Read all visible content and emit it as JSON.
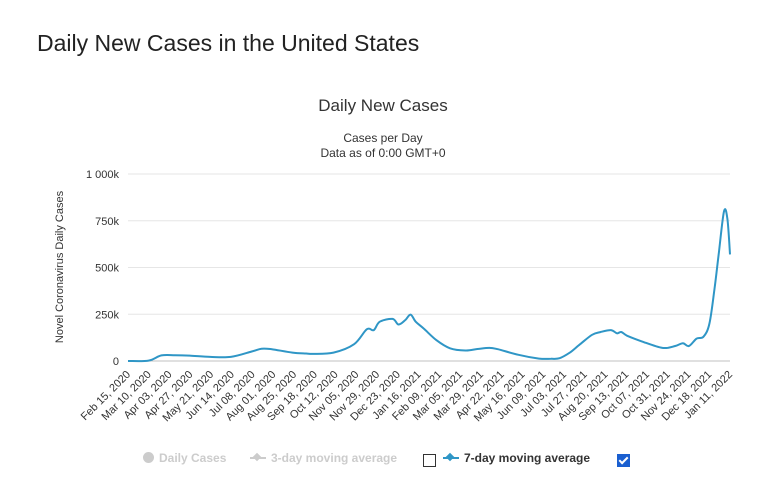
{
  "page": {
    "title": "Daily New Cases in the United States"
  },
  "chart_data": {
    "type": "line",
    "title": "Daily New Cases",
    "subtitle_lines": [
      "Cases per Day",
      "Data as of 0:00 GMT+0"
    ],
    "ylabel": "Novel Coronavirus Daily Cases",
    "xlabel": "",
    "ylim": [
      0,
      1000000
    ],
    "y_ticks": [
      0,
      250000,
      500000,
      750000,
      1000000
    ],
    "y_tick_labels": [
      "0",
      "250k",
      "500k",
      "750k",
      "1 000k"
    ],
    "grid": true,
    "x_tick_labels": [
      "Feb 15, 2020",
      "Mar 10, 2020",
      "Apr 03, 2020",
      "Apr 27, 2020",
      "May 21, 2020",
      "Jun 14, 2020",
      "Jul 08, 2020",
      "Aug 01, 2020",
      "Aug 25, 2020",
      "Sep 18, 2020",
      "Oct 12, 2020",
      "Nov 05, 2020",
      "Nov 29, 2020",
      "Dec 23, 2020",
      "Jan 16, 2021",
      "Feb 09, 2021",
      "Mar 05, 2021",
      "Mar 29, 2021",
      "Apr 22, 2021",
      "May 16, 2021",
      "Jun 09, 2021",
      "Jul 03, 2021",
      "Jul 27, 2021",
      "Aug 20, 2021",
      "Sep 13, 2021",
      "Oct 07, 2021",
      "Oct 31, 2021",
      "Nov 24, 2021",
      "Dec 18, 2021",
      "Jan 11, 2022"
    ],
    "series": [
      {
        "name": "7-day moving average",
        "color": "#2f96c6",
        "x": [
          "2020-02-15",
          "2020-03-10",
          "2020-03-25",
          "2020-04-10",
          "2020-04-27",
          "2020-05-21",
          "2020-06-14",
          "2020-07-08",
          "2020-07-20",
          "2020-08-01",
          "2020-08-25",
          "2020-09-10",
          "2020-09-18",
          "2020-10-12",
          "2020-11-05",
          "2020-11-20",
          "2020-11-28",
          "2020-12-05",
          "2020-12-20",
          "2020-12-27",
          "2021-01-04",
          "2021-01-10",
          "2021-01-16",
          "2021-01-25",
          "2021-02-09",
          "2021-02-25",
          "2021-03-15",
          "2021-03-29",
          "2021-04-12",
          "2021-04-22",
          "2021-05-16",
          "2021-06-09",
          "2021-06-23",
          "2021-07-03",
          "2021-07-15",
          "2021-07-27",
          "2021-08-10",
          "2021-08-20",
          "2021-09-01",
          "2021-09-08",
          "2021-09-13",
          "2021-09-20",
          "2021-10-07",
          "2021-10-31",
          "2021-11-15",
          "2021-11-24",
          "2021-12-01",
          "2021-12-10",
          "2021-12-18",
          "2021-12-25",
          "2021-12-31",
          "2022-01-05",
          "2022-01-11",
          "2022-01-15",
          "2022-01-18"
        ],
        "values": [
          0,
          2000,
          30000,
          31000,
          29000,
          22000,
          22000,
          50000,
          66000,
          63000,
          45000,
          40000,
          38000,
          45000,
          90000,
          170000,
          165000,
          210000,
          225000,
          195000,
          220000,
          248000,
          210000,
          175000,
          112000,
          68000,
          56000,
          64000,
          70000,
          63000,
          33000,
          13000,
          12000,
          15000,
          45000,
          90000,
          140000,
          155000,
          165000,
          148000,
          155000,
          135000,
          105000,
          70000,
          80000,
          95000,
          80000,
          120000,
          130000,
          200000,
          390000,
          580000,
          800000,
          760000,
          570000
        ]
      }
    ]
  },
  "legend": [
    {
      "label": "Daily Cases",
      "color": "#cccccc",
      "enabled": false
    },
    {
      "label": "3-day moving average",
      "color": "#cccccc",
      "enabled": false
    },
    {
      "label": "7-day moving average",
      "color": "#2f96c6",
      "enabled": true
    }
  ]
}
